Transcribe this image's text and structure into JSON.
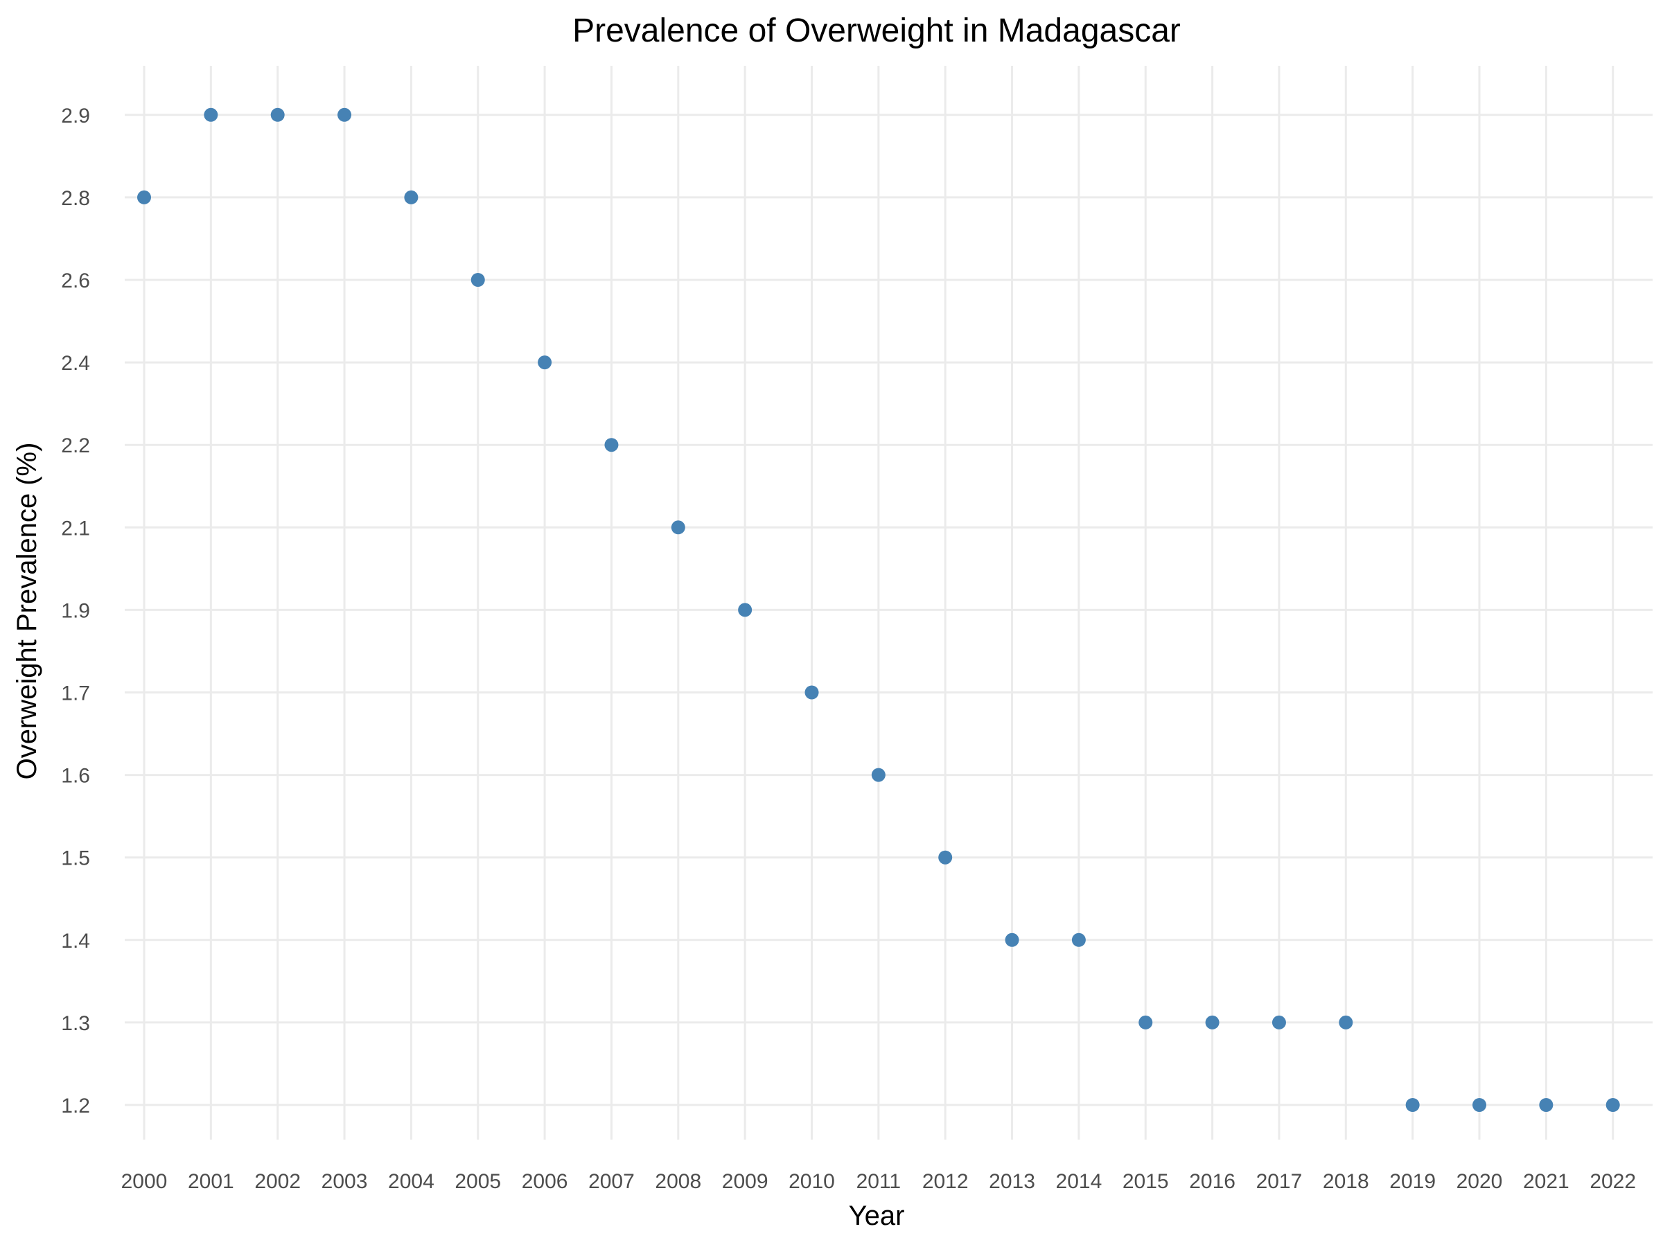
{
  "chart_data": {
    "type": "scatter",
    "title": "Prevalence of Overweight in Madagascar",
    "xlabel": "Year",
    "ylabel": "Overweight Prevalence (%)",
    "point_color": "#4682b4",
    "grid": true,
    "legend": "none",
    "x_is_categorical": true,
    "y_is_categorical": true,
    "categories": [
      "2000",
      "2001",
      "2002",
      "2003",
      "2004",
      "2005",
      "2006",
      "2007",
      "2008",
      "2009",
      "2010",
      "2011",
      "2012",
      "2013",
      "2014",
      "2015",
      "2016",
      "2017",
      "2018",
      "2019",
      "2020",
      "2021",
      "2022"
    ],
    "y_tick_labels": [
      "1.2",
      "1.3",
      "1.4",
      "1.5",
      "1.6",
      "1.7",
      "1.9",
      "2.1",
      "2.2",
      "2.4",
      "2.6",
      "2.8",
      "2.9"
    ],
    "values": [
      2.8,
      2.9,
      2.9,
      2.9,
      2.8,
      2.6,
      2.4,
      2.2,
      2.1,
      1.9,
      1.7,
      1.6,
      1.5,
      1.4,
      1.4,
      1.3,
      1.3,
      1.3,
      1.3,
      1.2,
      1.2,
      1.2,
      1.2
    ]
  }
}
